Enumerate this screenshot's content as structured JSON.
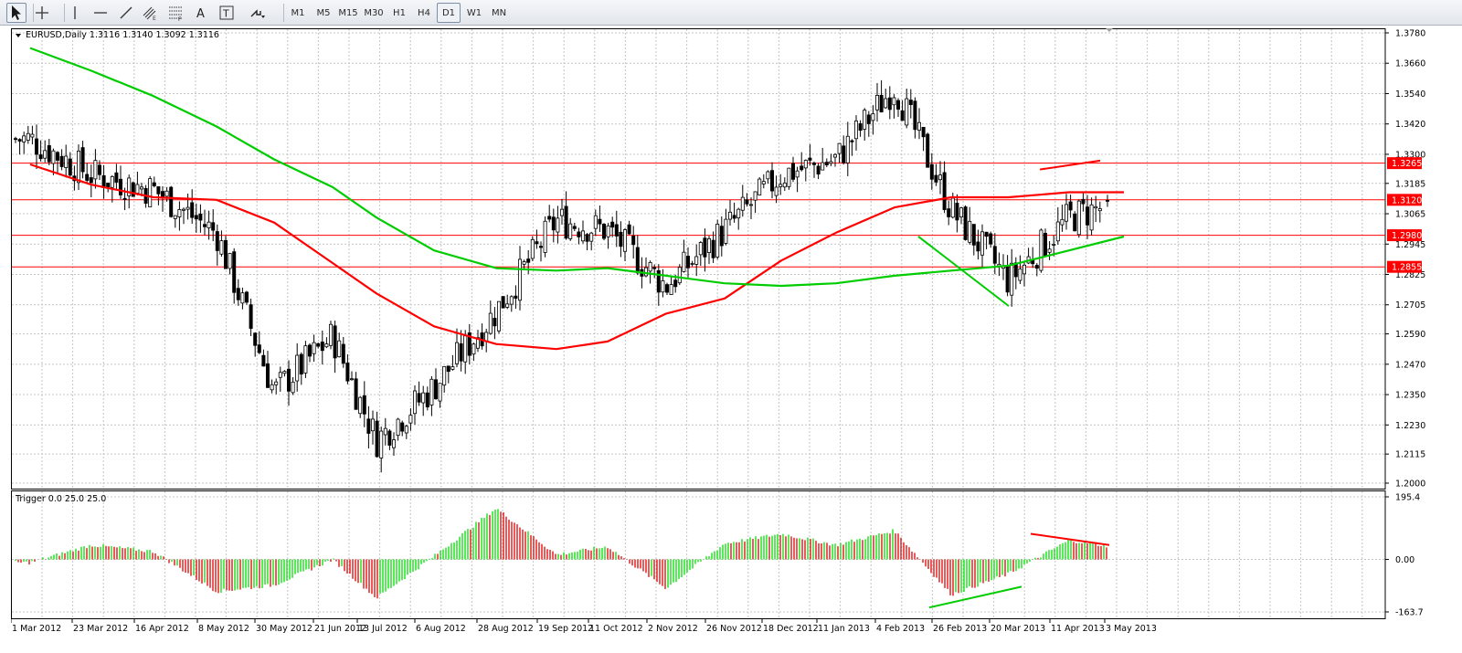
{
  "toolbar": {
    "tools": [
      {
        "name": "cursor-icon"
      },
      {
        "name": "crosshair-icon"
      },
      {
        "name": "vertical-line-icon"
      },
      {
        "name": "horizontal-line-icon"
      },
      {
        "name": "trendline-icon"
      },
      {
        "name": "equidistant-channel-icon"
      },
      {
        "name": "fibonacci-retracement-icon"
      },
      {
        "name": "text-tool-icon"
      },
      {
        "name": "text-label-tool-icon"
      },
      {
        "name": "arrows-icon"
      }
    ],
    "timeframes": [
      "M1",
      "M5",
      "M15",
      "M30",
      "H1",
      "H4",
      "D1",
      "W1",
      "MN"
    ],
    "selected_timeframe": "D1"
  },
  "main_chart": {
    "title": "EURUSD,Daily  1.3116 1.3140 1.3092 1.3116",
    "price_axis": [
      "1.3780",
      "1.3660",
      "1.3540",
      "1.3420",
      "1.3300",
      "1.3185",
      "1.3065",
      "1.2945",
      "1.2825",
      "1.2705",
      "1.2590",
      "1.2470",
      "1.2350",
      "1.2230",
      "1.2115",
      "1.2000"
    ],
    "level_labels": [
      "1.3265",
      "1.3120",
      "1.2980",
      "1.2855"
    ],
    "level_label_color": "#ff0000"
  },
  "indicator": {
    "title": "Trigger 0.0 25.0 25.0",
    "axis_labels": [
      "195.4",
      "0.00",
      "-163.7"
    ]
  },
  "time_axis": [
    "1 Mar 2012",
    "23 Mar 2012",
    "16 Apr 2012",
    "8 May 2012",
    "30 May 2012",
    "21 Jun 2012",
    "13 Jul 2012",
    "6 Aug 2012",
    "28 Aug 2012",
    "19 Sep 2012",
    "11 Oct 2012",
    "2 Nov 2012",
    "26 Nov 2012",
    "18 Dec 2012",
    "11 Jan 2013",
    "4 Feb 2013",
    "26 Feb 2013",
    "20 Mar 2013",
    "11 Apr 2013",
    "3 May 2013"
  ],
  "colors": {
    "bull_candle": "#ffffff",
    "bear_candle": "#000000",
    "ma_fast": "#ff0000",
    "ma_slow": "#00cc00",
    "hist_up": "#00dd00",
    "hist_down": "#dd0000",
    "grid": "#c4c4c4"
  },
  "chart_data": [
    {
      "type": "candlestick",
      "symbol": "EURUSD",
      "timeframe": "Daily",
      "last_ohlc": {
        "open": 1.3116,
        "high": 1.314,
        "low": 1.3092,
        "close": 1.3116
      },
      "ylim": [
        1.2,
        1.378
      ],
      "horizontal_levels": [
        1.3265,
        1.312,
        1.298,
        1.2855
      ],
      "close_path": [
        {
          "x": "1 Mar 2012",
          "y": 1.336
        },
        {
          "x": "23 Mar 2012",
          "y": 1.322
        },
        {
          "x": "16 Apr 2012",
          "y": 1.316
        },
        {
          "x": "8 May 2012",
          "y": 1.299
        },
        {
          "x": "30 May 2012",
          "y": 1.236
        },
        {
          "x": "21 Jun 2012",
          "y": 1.258
        },
        {
          "x": "13 Jul 2012",
          "y": 1.217
        },
        {
          "x": "6 Aug 2012",
          "y": 1.238
        },
        {
          "x": "28 Aug 2012",
          "y": 1.268
        },
        {
          "x": "19 Sep 2012",
          "y": 1.304
        },
        {
          "x": "11 Oct 2012",
          "y": 1.3
        },
        {
          "x": "2 Nov 2012",
          "y": 1.278
        },
        {
          "x": "26 Nov 2012",
          "y": 1.3
        },
        {
          "x": "18 Dec 2012",
          "y": 1.322
        },
        {
          "x": "11 Jan 2013",
          "y": 1.328
        },
        {
          "x": "4 Feb 2013",
          "y": 1.357
        },
        {
          "x": "26 Feb 2013",
          "y": 1.308
        },
        {
          "x": "20 Mar 2013",
          "y": 1.28
        },
        {
          "x": "11 Apr 2013",
          "y": 1.305
        },
        {
          "x": "3 May 2013",
          "y": 1.3116
        }
      ],
      "moving_averages": [
        {
          "color": "red",
          "points": [
            {
              "x": "1 Mar 2012",
              "y": 1.326
            },
            {
              "x": "23 Mar 2012",
              "y": 1.318
            },
            {
              "x": "16 Apr 2012",
              "y": 1.313
            },
            {
              "x": "8 May 2012",
              "y": 1.312
            },
            {
              "x": "30 May 2012",
              "y": 1.303
            },
            {
              "x": "21 Jun 2012",
              "y": 1.287
            },
            {
              "x": "13 Jul 2012",
              "y": 1.275
            },
            {
              "x": "6 Aug 2012",
              "y": 1.262
            },
            {
              "x": "28 Aug 2012",
              "y": 1.255
            },
            {
              "x": "19 Sep 2012",
              "y": 1.253
            },
            {
              "x": "11 Oct 2012",
              "y": 1.256
            },
            {
              "x": "2 Nov 2012",
              "y": 1.267
            },
            {
              "x": "26 Nov 2012",
              "y": 1.273
            },
            {
              "x": "18 Dec 2012",
              "y": 1.288
            },
            {
              "x": "11 Jan 2013",
              "y": 1.299
            },
            {
              "x": "4 Feb 2013",
              "y": 1.309
            },
            {
              "x": "26 Feb 2013",
              "y": 1.313
            },
            {
              "x": "20 Mar 2013",
              "y": 1.313
            },
            {
              "x": "11 Apr 2013",
              "y": 1.315
            },
            {
              "x": "3 May 2013",
              "y": 1.315
            }
          ]
        },
        {
          "color": "green",
          "points": [
            {
              "x": "1 Mar 2012",
              "y": 1.372
            },
            {
              "x": "23 Mar 2012",
              "y": 1.363
            },
            {
              "x": "16 Apr 2012",
              "y": 1.353
            },
            {
              "x": "8 May 2012",
              "y": 1.341
            },
            {
              "x": "30 May 2012",
              "y": 1.328
            },
            {
              "x": "21 Jun 2012",
              "y": 1.317
            },
            {
              "x": "13 Jul 2012",
              "y": 1.305
            },
            {
              "x": "6 Aug 2012",
              "y": 1.292
            },
            {
              "x": "28 Aug 2012",
              "y": 1.285
            },
            {
              "x": "19 Sep 2012",
              "y": 1.284
            },
            {
              "x": "11 Oct 2012",
              "y": 1.285
            },
            {
              "x": "2 Nov 2012",
              "y": 1.282
            },
            {
              "x": "26 Nov 2012",
              "y": 1.279
            },
            {
              "x": "18 Dec 2012",
              "y": 1.278
            },
            {
              "x": "11 Jan 2013",
              "y": 1.279
            },
            {
              "x": "4 Feb 2013",
              "y": 1.282
            },
            {
              "x": "26 Feb 2013",
              "y": 1.284
            },
            {
              "x": "20 Mar 2013",
              "y": 1.286
            },
            {
              "x": "11 Apr 2013",
              "y": 1.292
            },
            {
              "x": "3 May 2013",
              "y": 1.2975
            }
          ]
        }
      ]
    },
    {
      "type": "bar",
      "name": "Trigger 0.0 25.0 25.0",
      "ylim": [
        -163.7,
        195.4
      ],
      "categories": [
        "1 Mar 2012",
        "23 Mar 2012",
        "16 Apr 2012",
        "8 May 2012",
        "30 May 2012",
        "21 Jun 2012",
        "13 Jul 2012",
        "6 Aug 2012",
        "28 Aug 2012",
        "19 Sep 2012",
        "11 Oct 2012",
        "2 Nov 2012",
        "26 Nov 2012",
        "18 Dec 2012",
        "11 Jan 2013",
        "4 Feb 2013",
        "26 Feb 2013",
        "20 Mar 2013",
        "11 Apr 2013",
        "3 May 2013"
      ],
      "values": [
        -10,
        45,
        25,
        -100,
        -80,
        0,
        -120,
        10,
        160,
        15,
        40,
        -90,
        50,
        80,
        45,
        90,
        -110,
        -45,
        60,
        35
      ]
    }
  ]
}
